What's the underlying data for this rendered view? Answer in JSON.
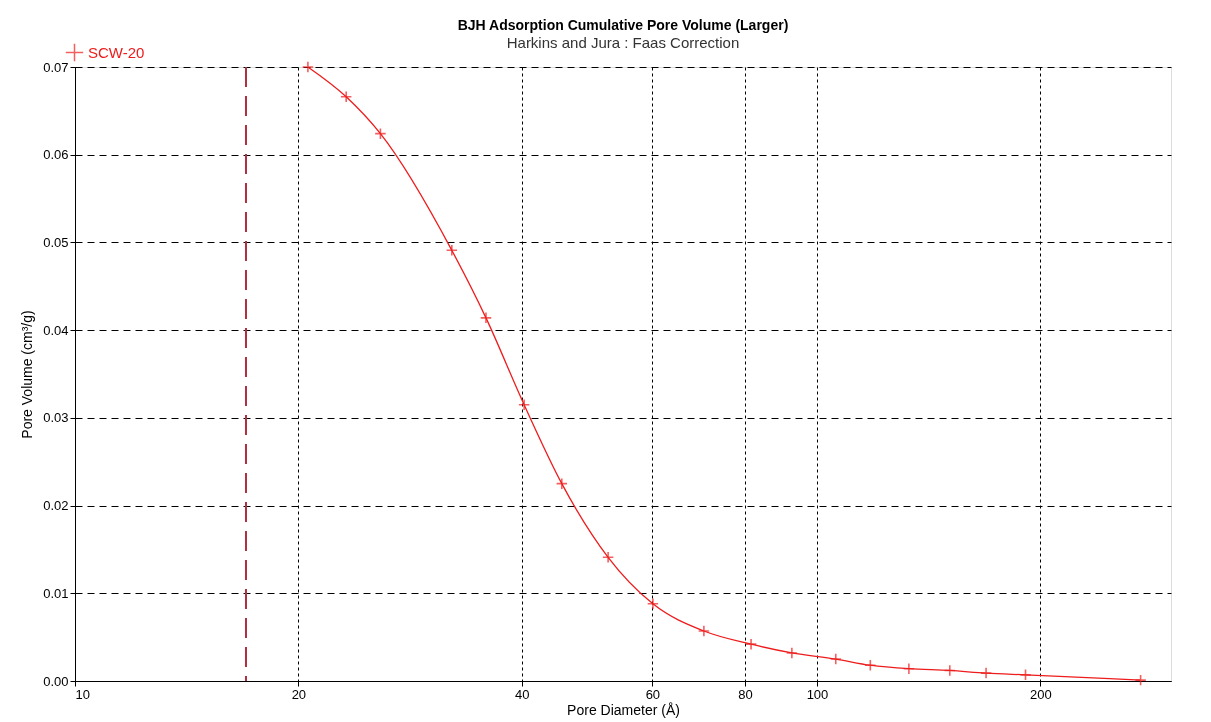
{
  "chart_data": {
    "type": "line",
    "title": "BJH Adsorption Cumulative Pore Volume (Larger)",
    "subtitle": "Harkins and Jura : Faas Correction",
    "xlabel": "Pore Diameter (Å)",
    "ylabel": "Pore Volume (cm³/g)",
    "x": [
      20.6,
      23.2,
      25.8,
      32.2,
      35.8,
      40.3,
      45.3,
      52.3,
      60.1,
      70.4,
      81.5,
      92.5,
      106,
      118,
      133,
      151,
      169,
      191,
      273
    ],
    "series": [
      {
        "name": "SCW-20",
        "color": "#ee1c1c",
        "values": [
          0.07,
          0.0666,
          0.0624,
          0.0491,
          0.0414,
          0.0315,
          0.0225,
          0.0141,
          0.0088,
          0.0057,
          0.0042,
          0.0032,
          0.0025,
          0.0018,
          0.0014,
          0.0012,
          0.0009,
          0.0007,
          0.0001
        ]
      }
    ],
    "xlim": [
      10,
      300
    ],
    "xticks": [
      10,
      20,
      40,
      60,
      80,
      100,
      200
    ],
    "ylim": [
      0,
      0.07
    ],
    "yticks": [
      {
        "value": 0,
        "label": "0.00"
      },
      {
        "value": 0.01,
        "label": "0.01"
      },
      {
        "value": 0.02,
        "label": "0.02"
      },
      {
        "value": 0.03,
        "label": "0.03"
      },
      {
        "value": 0.04,
        "label": "0.04"
      },
      {
        "value": 0.05,
        "label": "0.05"
      },
      {
        "value": 0.06,
        "label": "0.06"
      },
      {
        "value": 0.07,
        "label": "0.07"
      }
    ],
    "log": "x",
    "grid": true,
    "legend": "top left",
    "marker": "cross",
    "line_style": "solid",
    "ref_lines": [
      {
        "axis": "x",
        "value": 17.0,
        "color": "#b03040",
        "line_style": "dashed"
      }
    ]
  }
}
